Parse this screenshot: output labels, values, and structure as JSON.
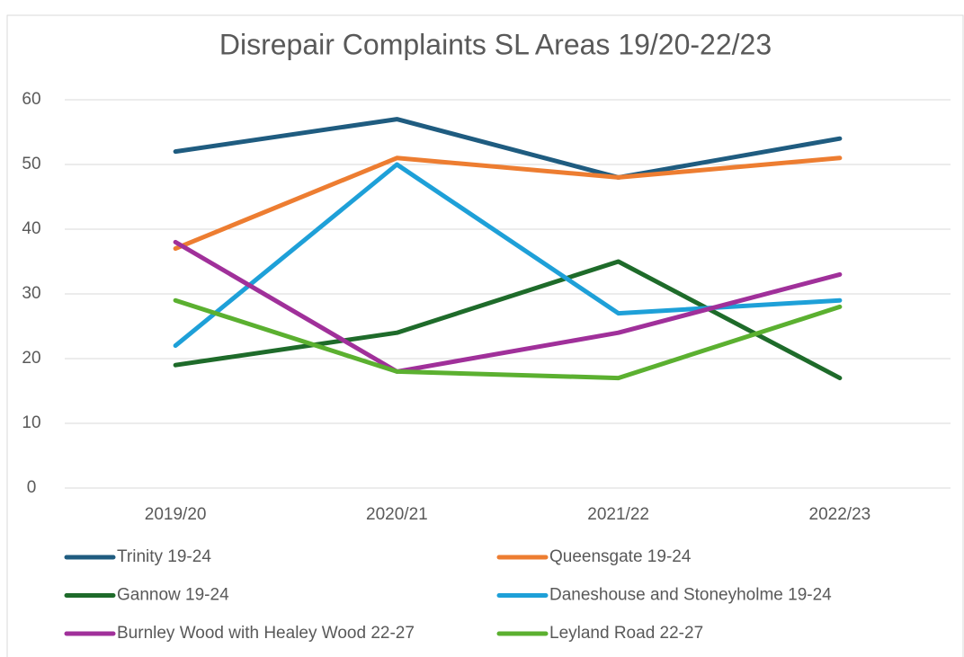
{
  "chart_data": {
    "type": "line",
    "title": "Disrepair Complaints SL Areas 19/20-22/23",
    "categories": [
      "2019/20",
      "2020/21",
      "2021/22",
      "2022/23"
    ],
    "series": [
      {
        "name": "Trinity 19-24",
        "color": "#1f5c80",
        "values": [
          52,
          57,
          48,
          54
        ]
      },
      {
        "name": "Queensgate 19-24",
        "color": "#ed7d31",
        "values": [
          37,
          51,
          48,
          51
        ]
      },
      {
        "name": "Gannow 19-24",
        "color": "#1e6b2a",
        "values": [
          19,
          24,
          35,
          17
        ]
      },
      {
        "name": "Daneshouse and Stoneyholme 19-24",
        "color": "#1ea0d8",
        "values": [
          22,
          50,
          27,
          29
        ]
      },
      {
        "name": "Burnley Wood with Healey Wood 22-27",
        "color": "#a0309a",
        "values": [
          38,
          18,
          24,
          33
        ]
      },
      {
        "name": "Leyland Road 22-27",
        "color": "#5bb030",
        "values": [
          29,
          18,
          17,
          28
        ]
      }
    ],
    "ylim": [
      0,
      60
    ],
    "yticks": [
      0,
      10,
      20,
      30,
      40,
      50,
      60
    ],
    "grid": true,
    "legend": "bottom"
  }
}
